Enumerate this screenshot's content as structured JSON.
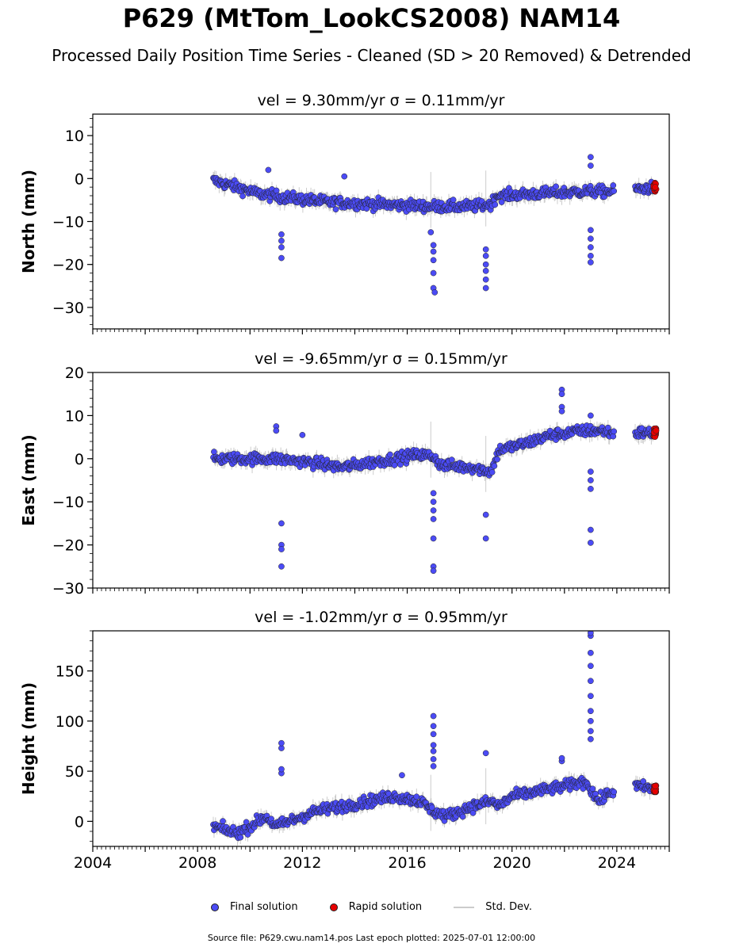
{
  "title": "P629 (MtTom_LookCS2008) NAM14",
  "subtitle": "Processed Daily Position Time Series - Cleaned (SD > 20 Removed) & Detrended",
  "legend": {
    "final": "Final solution",
    "rapid": "Rapid solution",
    "std": "Std. Dev."
  },
  "footer": "Source file: P629.cwu.nam14.pos  Last epoch plotted: 2025-07-01 12:00:00",
  "colors": {
    "final": "#4b4bf5",
    "rapid": "#e60000",
    "std": "#cccccc",
    "marker_edge": "#222222"
  },
  "chart_data": [
    {
      "type": "scatter",
      "panel": "north",
      "title": "vel = 9.30mm/yr   σ = 0.11mm/yr",
      "ylabel": "North (mm)",
      "xlim": [
        2004.0,
        2026.0
      ],
      "ylim": [
        -35,
        15
      ],
      "yticks": [
        -30,
        -20,
        -10,
        0,
        10
      ],
      "x_tick_labels": [],
      "start_year": 2008.6,
      "end_year": 2025.5,
      "series": [
        {
          "name": "Final solution",
          "trend": [
            [
              2008.6,
              -0.5
            ],
            [
              2009.5,
              -2
            ],
            [
              2010.3,
              -3.5
            ],
            [
              2011.5,
              -4.5
            ],
            [
              2013.0,
              -5.5
            ],
            [
              2015.0,
              -6
            ],
            [
              2017.0,
              -6.5
            ],
            [
              2018.5,
              -6.5
            ],
            [
              2019.2,
              -6
            ],
            [
              2019.4,
              -4
            ],
            [
              2021.0,
              -3.5
            ],
            [
              2022.8,
              -3
            ],
            [
              2023.8,
              -3
            ],
            [
              2024.7,
              -2.5
            ],
            [
              2025.5,
              -2
            ]
          ]
        },
        {
          "name": "Rapid solution",
          "x_range": [
            2025.4,
            2025.5
          ],
          "y_range": [
            -3,
            -1
          ]
        }
      ],
      "outliers": [
        [
          2011.2,
          -13
        ],
        [
          2011.2,
          -14.5
        ],
        [
          2011.2,
          -16
        ],
        [
          2011.2,
          -18.5
        ],
        [
          2017.0,
          -15.5
        ],
        [
          2017.0,
          -17
        ],
        [
          2017.0,
          -19
        ],
        [
          2017.0,
          -22
        ],
        [
          2017.0,
          -25.5
        ],
        [
          2017.05,
          -26.5
        ],
        [
          2019.0,
          -16.5
        ],
        [
          2019.0,
          -18
        ],
        [
          2019.0,
          -20
        ],
        [
          2019.0,
          -21.5
        ],
        [
          2019.0,
          -23.5
        ],
        [
          2019.0,
          -25.5
        ],
        [
          2023.0,
          -12
        ],
        [
          2023.0,
          -14
        ],
        [
          2023.0,
          -16
        ],
        [
          2023.0,
          -18
        ],
        [
          2023.0,
          -19.5
        ],
        [
          2023.0,
          5
        ],
        [
          2023.0,
          3
        ],
        [
          2010.7,
          2
        ],
        [
          2013.6,
          0.5
        ],
        [
          2016.9,
          -12.5
        ]
      ]
    },
    {
      "type": "scatter",
      "panel": "east",
      "title": "vel = -9.65mm/yr   σ = 0.15mm/yr",
      "ylabel": "East (mm)",
      "xlim": [
        2004.0,
        2026.0
      ],
      "ylim": [
        -30,
        20
      ],
      "yticks": [
        -30,
        -20,
        -10,
        0,
        10,
        20
      ],
      "x_tick_labels": [],
      "start_year": 2008.6,
      "end_year": 2025.5,
      "series": [
        {
          "name": "Final solution",
          "trend": [
            [
              2008.6,
              0
            ],
            [
              2011.0,
              0
            ],
            [
              2012.5,
              -1
            ],
            [
              2013.5,
              -2
            ],
            [
              2015.0,
              -0.5
            ],
            [
              2016.5,
              1
            ],
            [
              2017.0,
              0.5
            ],
            [
              2017.3,
              -1.5
            ],
            [
              2018.5,
              -2
            ],
            [
              2019.2,
              -3
            ],
            [
              2019.5,
              2
            ],
            [
              2020.5,
              3.5
            ],
            [
              2021.5,
              5.5
            ],
            [
              2022.8,
              6.5
            ],
            [
              2023.5,
              6.5
            ],
            [
              2024.0,
              5.5
            ],
            [
              2024.7,
              6
            ],
            [
              2025.5,
              6
            ]
          ]
        },
        {
          "name": "Rapid solution",
          "x_range": [
            2025.4,
            2025.5
          ],
          "y_range": [
            5,
            7
          ]
        }
      ],
      "outliers": [
        [
          2011.2,
          -15
        ],
        [
          2011.2,
          -20
        ],
        [
          2011.2,
          -21
        ],
        [
          2011.2,
          -25
        ],
        [
          2011.0,
          7.5
        ],
        [
          2011.0,
          6.5
        ],
        [
          2012.0,
          5.5
        ],
        [
          2017.0,
          -8
        ],
        [
          2017.0,
          -10
        ],
        [
          2017.0,
          -12
        ],
        [
          2017.0,
          -14
        ],
        [
          2017.0,
          -18.5
        ],
        [
          2017.0,
          -25
        ],
        [
          2017.0,
          -26
        ],
        [
          2019.0,
          -13
        ],
        [
          2019.0,
          -18.5
        ],
        [
          2023.0,
          -3
        ],
        [
          2023.0,
          -5
        ],
        [
          2023.0,
          -7
        ],
        [
          2023.0,
          -16.5
        ],
        [
          2023.0,
          -19.5
        ],
        [
          2023.0,
          10
        ],
        [
          2021.9,
          16
        ],
        [
          2021.9,
          15
        ],
        [
          2021.9,
          12
        ],
        [
          2021.9,
          11
        ]
      ]
    },
    {
      "type": "scatter",
      "panel": "height",
      "title": "vel = -1.02mm/yr   σ = 0.95mm/yr",
      "ylabel": "Height (mm)",
      "xlim": [
        2004.0,
        2026.0
      ],
      "ylim": [
        -25,
        190
      ],
      "yticks": [
        0,
        50,
        100,
        150
      ],
      "x_tick_labels": [
        "2004",
        "2008",
        "2012",
        "2016",
        "2020",
        "2024"
      ],
      "x_tick_values": [
        2004,
        2008,
        2012,
        2016,
        2020,
        2024
      ],
      "start_year": 2008.6,
      "end_year": 2025.5,
      "series": [
        {
          "name": "Final solution",
          "trend": [
            [
              2008.6,
              -5
            ],
            [
              2009.5,
              -12
            ],
            [
              2010.0,
              -5
            ],
            [
              2010.6,
              5
            ],
            [
              2011.0,
              -5
            ],
            [
              2011.5,
              0
            ],
            [
              2012.5,
              10
            ],
            [
              2013.5,
              15
            ],
            [
              2014.5,
              20
            ],
            [
              2015.5,
              25
            ],
            [
              2016.5,
              20
            ],
            [
              2017.0,
              10
            ],
            [
              2017.5,
              5
            ],
            [
              2018.5,
              15
            ],
            [
              2019.2,
              20
            ],
            [
              2019.5,
              15
            ],
            [
              2020.0,
              25
            ],
            [
              2021.0,
              30
            ],
            [
              2022.0,
              35
            ],
            [
              2022.8,
              40
            ],
            [
              2023.3,
              20
            ],
            [
              2023.8,
              30
            ],
            [
              2024.7,
              35
            ],
            [
              2025.5,
              32
            ]
          ]
        },
        {
          "name": "Rapid solution",
          "x_range": [
            2025.4,
            2025.5
          ],
          "y_range": [
            28,
            36
          ]
        }
      ],
      "outliers": [
        [
          2011.2,
          48
        ],
        [
          2011.2,
          52
        ],
        [
          2011.2,
          73
        ],
        [
          2011.2,
          78
        ],
        [
          2017.0,
          55
        ],
        [
          2017.0,
          62
        ],
        [
          2017.0,
          70
        ],
        [
          2017.0,
          76
        ],
        [
          2017.0,
          87
        ],
        [
          2017.0,
          95
        ],
        [
          2017.0,
          105
        ],
        [
          2019.0,
          68
        ],
        [
          2015.8,
          46
        ],
        [
          2023.0,
          82
        ],
        [
          2023.0,
          90
        ],
        [
          2023.0,
          100
        ],
        [
          2023.0,
          110
        ],
        [
          2023.0,
          125
        ],
        [
          2023.0,
          140
        ],
        [
          2023.0,
          155
        ],
        [
          2023.0,
          168
        ],
        [
          2023.0,
          185
        ],
        [
          2023.0,
          188
        ],
        [
          2021.9,
          60
        ],
        [
          2021.9,
          63
        ]
      ]
    }
  ]
}
